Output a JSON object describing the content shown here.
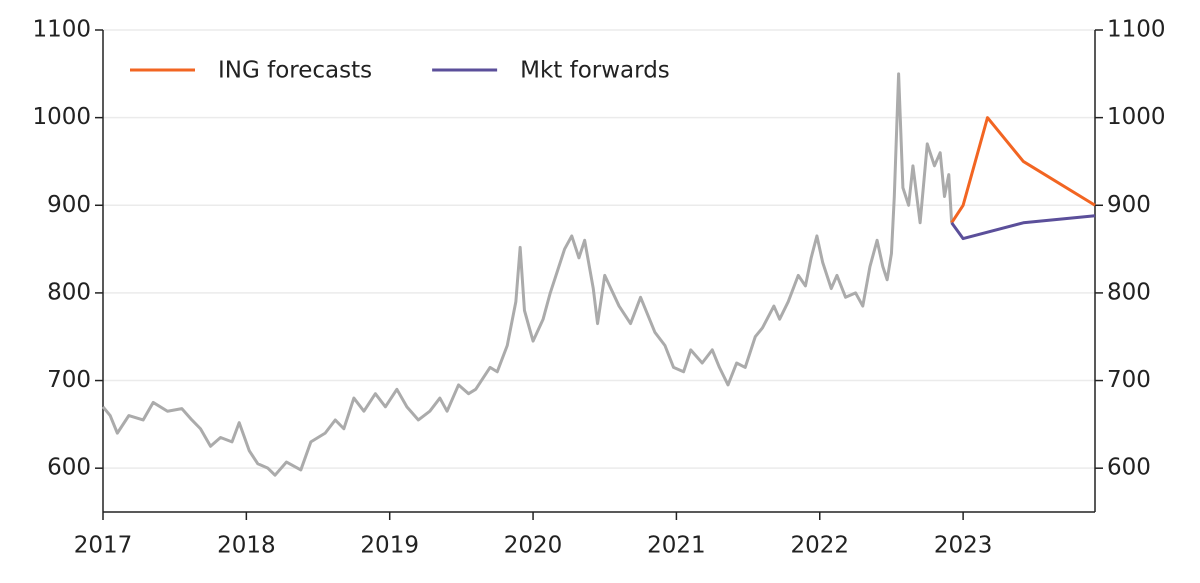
{
  "chart_data": {
    "type": "line",
    "xlim": [
      2017,
      2023.92
    ],
    "xticks": [
      2017,
      2018,
      2019,
      2020,
      2021,
      2022,
      2023
    ],
    "ylim": [
      550,
      1100
    ],
    "yticks": [
      600,
      700,
      800,
      900,
      1000,
      1100
    ],
    "y2lim": [
      550,
      1100
    ],
    "y2ticks": [
      600,
      700,
      800,
      900,
      1000,
      1100
    ],
    "grid": true,
    "legend": "top-left",
    "series": [
      {
        "color": "#ababab",
        "x": [
          2017.0,
          2017.05,
          2017.1,
          2017.18,
          2017.28,
          2017.35,
          2017.45,
          2017.55,
          2017.62,
          2017.68,
          2017.75,
          2017.82,
          2017.9,
          2017.95,
          2018.02,
          2018.08,
          2018.15,
          2018.2,
          2018.28,
          2018.38,
          2018.45,
          2018.55,
          2018.62,
          2018.68,
          2018.75,
          2018.82,
          2018.9,
          2018.97,
          2019.05,
          2019.12,
          2019.2,
          2019.28,
          2019.35,
          2019.4,
          2019.48,
          2019.55,
          2019.6,
          2019.7,
          2019.75,
          2019.82,
          2019.88,
          2019.91,
          2019.94,
          2020.0,
          2020.07,
          2020.12,
          2020.18,
          2020.22,
          2020.27,
          2020.32,
          2020.36,
          2020.42,
          2020.45,
          2020.5,
          2020.6,
          2020.68,
          2020.75,
          2020.8,
          2020.85,
          2020.92,
          2020.98,
          2021.05,
          2021.1,
          2021.18,
          2021.25,
          2021.3,
          2021.36,
          2021.42,
          2021.48,
          2021.55,
          2021.6,
          2021.68,
          2021.72,
          2021.78,
          2021.85,
          2021.9,
          2021.94,
          2021.98,
          2022.02,
          2022.08,
          2022.12,
          2022.18,
          2022.25,
          2022.3,
          2022.35,
          2022.4,
          2022.44,
          2022.47,
          2022.5,
          2022.52,
          2022.55,
          2022.58,
          2022.62,
          2022.65,
          2022.7,
          2022.75,
          2022.8,
          2022.84,
          2022.87,
          2022.9,
          2022.92
        ],
        "values": [
          670,
          660,
          640,
          660,
          655,
          675,
          665,
          668,
          655,
          645,
          625,
          635,
          630,
          652,
          620,
          605,
          600,
          592,
          607,
          598,
          630,
          640,
          655,
          645,
          680,
          665,
          685,
          670,
          690,
          670,
          655,
          665,
          680,
          665,
          695,
          685,
          690,
          715,
          710,
          740,
          790,
          852,
          780,
          745,
          770,
          800,
          830,
          850,
          865,
          840,
          860,
          805,
          765,
          820,
          785,
          765,
          795,
          775,
          755,
          740,
          715,
          710,
          735,
          720,
          735,
          715,
          695,
          720,
          715,
          750,
          760,
          785,
          770,
          790,
          820,
          808,
          840,
          865,
          835,
          805,
          820,
          795,
          800,
          785,
          830,
          860,
          830,
          815,
          845,
          910,
          1050,
          920,
          900,
          945,
          880,
          970,
          945,
          960,
          910,
          935,
          880
        ]
      },
      {
        "name": "ING forecasts",
        "color": "#f26522",
        "x": [
          2022.92,
          2023.0,
          2023.17,
          2023.42,
          2023.92
        ],
        "values": [
          880,
          900,
          1000,
          950,
          900
        ]
      },
      {
        "name": "Mkt forwards",
        "color": "#5b4f9a",
        "x": [
          2022.92,
          2023.0,
          2023.42,
          2023.92
        ],
        "values": [
          880,
          862,
          880,
          888
        ]
      }
    ]
  }
}
